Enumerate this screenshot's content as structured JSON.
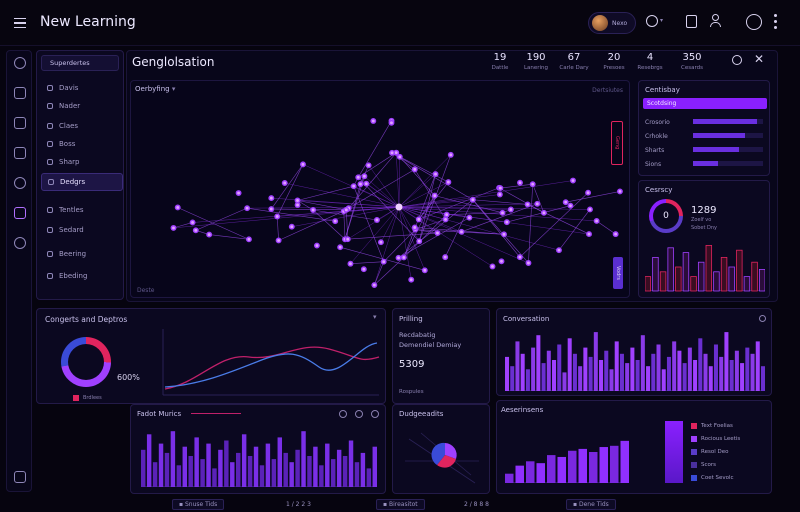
{
  "app": {
    "title": "New Learning"
  },
  "header": {
    "user_label": "Nexo"
  },
  "sidebar": {
    "section_label": "Superdertes",
    "items": [
      {
        "label": "Davis",
        "active": false
      },
      {
        "label": "Nader",
        "active": false
      },
      {
        "label": "Claes",
        "active": false
      },
      {
        "label": "Boss",
        "active": false
      },
      {
        "label": "Sharp",
        "active": false
      },
      {
        "label": "Dedgrs",
        "active": true
      },
      {
        "label": "Tentles",
        "active": false
      },
      {
        "label": "Sedard",
        "active": false
      },
      {
        "label": "Beering",
        "active": false
      },
      {
        "label": "Ebeding",
        "active": false
      }
    ]
  },
  "main": {
    "title": "Genglolsation",
    "stats": [
      {
        "value": "19",
        "label": "Dattle"
      },
      {
        "value": "190",
        "label": "Lanering"
      },
      {
        "value": "67",
        "label": "Carle Dary"
      },
      {
        "value": "20",
        "label": "Presoes"
      },
      {
        "value": "4",
        "label": "Resebrgs"
      },
      {
        "value": "350",
        "label": "Cesards"
      }
    ],
    "network": {
      "dropdown_label": "Oerbyfing",
      "right_label": "Dertsiutes",
      "footer_label": "Deste",
      "side_tag": "Geng",
      "side_tag2": "Vodrs"
    }
  },
  "right_panel": {
    "title": "Centisbay",
    "highlight_label": "Scotdsing",
    "rows": [
      {
        "label": "Crosorio",
        "fill": 0.92
      },
      {
        "label": "Crhokle",
        "fill": 0.74
      },
      {
        "label": "Sharts",
        "fill": 0.66
      },
      {
        "label": "Sions",
        "fill": 0.36
      }
    ]
  },
  "gauge_panel": {
    "title": "Cesrscy",
    "center": "0",
    "value": "1289",
    "sub1": "Zoelf vo",
    "sub2": "Sobet Dny",
    "bars": [
      0.3,
      0.7,
      0.4,
      0.9,
      0.5,
      0.8,
      0.3,
      0.6,
      0.95,
      0.4,
      0.7,
      0.5,
      0.85,
      0.3,
      0.6,
      0.45
    ]
  },
  "donut_panel": {
    "title": "Congerts and Deptros",
    "percent": "600%",
    "legend": "Brdlees",
    "fill": 0.72
  },
  "middle_panel": {
    "title": "Prilling",
    "line1": "Recdabatig",
    "line2": "Demendiel Demiay",
    "value": "5309",
    "footer": "Rospules"
  },
  "conversion_panel": {
    "title": "Conversation",
    "bars": [
      0.55,
      0.4,
      0.8,
      0.6,
      0.35,
      0.7,
      0.9,
      0.45,
      0.65,
      0.5,
      0.75,
      0.3,
      0.85,
      0.6,
      0.4,
      0.7,
      0.55,
      0.95,
      0.5,
      0.65,
      0.35,
      0.8,
      0.6,
      0.45,
      0.7,
      0.5,
      0.9,
      0.4,
      0.6,
      0.75,
      0.35,
      0.55,
      0.8,
      0.65,
      0.45,
      0.7,
      0.5,
      0.85,
      0.6,
      0.4,
      0.75,
      0.55,
      0.95,
      0.5,
      0.65,
      0.45,
      0.7,
      0.6,
      0.8,
      0.4
    ]
  },
  "bottom_bars_panel": {
    "title": "Fadot Murics",
    "bars": [
      0.6,
      0.85,
      0.4,
      0.7,
      0.55,
      0.9,
      0.35,
      0.65,
      0.5,
      0.8,
      0.45,
      0.7,
      0.3,
      0.6,
      0.75,
      0.4,
      0.55,
      0.85,
      0.5,
      0.65,
      0.35,
      0.7,
      0.45,
      0.8,
      0.55,
      0.4,
      0.6,
      0.9,
      0.5,
      0.65,
      0.35,
      0.7,
      0.45,
      0.6,
      0.5,
      0.75,
      0.4,
      0.55,
      0.3,
      0.65
    ]
  },
  "pie_panel": {
    "title": "Dudgeeadits"
  },
  "activity_panel": {
    "title": "Aeserinsens",
    "bars": [
      0.15,
      0.28,
      0.35,
      0.32,
      0.45,
      0.42,
      0.52,
      0.55,
      0.5,
      0.58,
      0.6,
      0.68
    ],
    "legend": [
      {
        "label": "Text Foelias",
        "color": "#e0245e"
      },
      {
        "label": "Rocious Leetis",
        "color": "#a040ff"
      },
      {
        "label": "Resol Deo",
        "color": "#5a3cc8"
      },
      {
        "label": "Scors",
        "color": "#4a2f9e"
      },
      {
        "label": "Coet Sevolc",
        "color": "#3a4bd8"
      }
    ]
  },
  "footer": {
    "btn1": "Snuse Tids",
    "pages": "1 / 2 2 3",
    "btn2": "Bireasitot",
    "btn3": "Dene Tids",
    "pages2": "2 / 8 8 8"
  }
}
